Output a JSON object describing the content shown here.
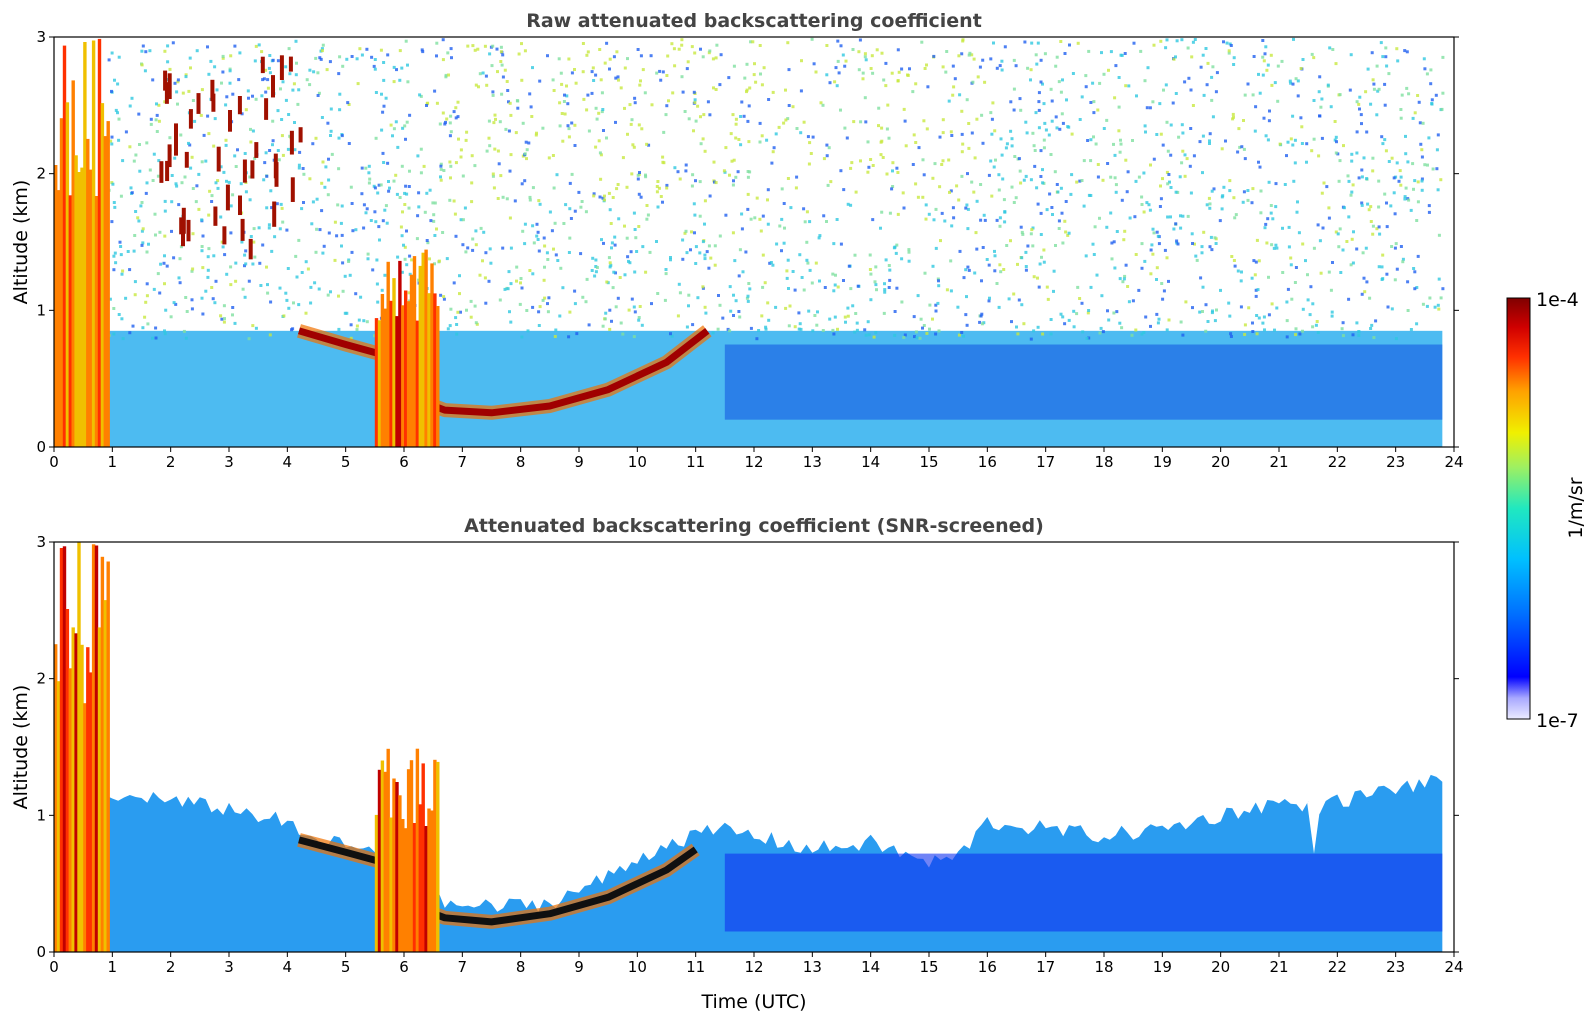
{
  "chart_data": [
    {
      "type": "heatmap",
      "title": "Raw attenuated backscattering coefficient",
      "xlabel": "",
      "ylabel": "Altitude (km)",
      "xlim": [
        0,
        24
      ],
      "ylim": [
        0,
        3
      ],
      "x_ticks": [
        "0",
        "1",
        "2",
        "3",
        "4",
        "5",
        "6",
        "7",
        "8",
        "9",
        "10",
        "11",
        "12",
        "13",
        "14",
        "15",
        "16",
        "17",
        "18",
        "19",
        "20",
        "21",
        "22",
        "23",
        "24"
      ],
      "y_ticks": [
        "0",
        "1",
        "2",
        "3"
      ],
      "data_end_x": 23.8,
      "noise_background": true,
      "features": [
        {
          "kind": "column",
          "x_start": 0.0,
          "x_end": 0.95,
          "y_top": 3.0,
          "level": "high"
        },
        {
          "kind": "layer",
          "points": [
            [
              4.2,
              0.85
            ],
            [
              5.0,
              0.75
            ],
            [
              5.6,
              0.68
            ],
            [
              5.9,
              0.5
            ],
            [
              6.2,
              0.35
            ],
            [
              6.7,
              0.27
            ],
            [
              7.5,
              0.25
            ],
            [
              8.5,
              0.3
            ],
            [
              9.5,
              0.42
            ],
            [
              10.5,
              0.62
            ],
            [
              11.2,
              0.85
            ]
          ],
          "level": "max"
        },
        {
          "kind": "column",
          "x_start": 5.5,
          "x_end": 6.6,
          "y_top": 1.5,
          "level": "high"
        },
        {
          "kind": "blobs",
          "x_range": [
            1.8,
            4.2
          ],
          "y_range": [
            1.5,
            2.9
          ],
          "level": "max"
        }
      ]
    },
    {
      "type": "heatmap",
      "title": "Attenuated backscattering coefficient (SNR-screened)",
      "xlabel": "Time (UTC)",
      "ylabel": "Altitude (km)",
      "xlim": [
        0,
        24
      ],
      "ylim": [
        0,
        3
      ],
      "x_ticks": [
        "0",
        "1",
        "2",
        "3",
        "4",
        "5",
        "6",
        "7",
        "8",
        "9",
        "10",
        "11",
        "12",
        "13",
        "14",
        "15",
        "16",
        "17",
        "18",
        "19",
        "20",
        "21",
        "22",
        "23",
        "24"
      ],
      "y_ticks": [
        "0",
        "1",
        "2",
        "3"
      ],
      "data_end_x": 23.8,
      "noise_background": false,
      "signal_top": [
        [
          1.0,
          1.1
        ],
        [
          1.5,
          1.15
        ],
        [
          2.0,
          1.1
        ],
        [
          3.0,
          1.05
        ],
        [
          4.0,
          0.95
        ],
        [
          4.2,
          0.85
        ],
        [
          5.0,
          0.78
        ],
        [
          5.6,
          0.72
        ],
        [
          6.0,
          0.5
        ],
        [
          6.7,
          0.35
        ],
        [
          7.5,
          0.33
        ],
        [
          8.5,
          0.36
        ],
        [
          9.5,
          0.55
        ],
        [
          10.5,
          0.8
        ],
        [
          11.5,
          0.9
        ],
        [
          12.0,
          0.85
        ],
        [
          13.0,
          0.75
        ],
        [
          14.0,
          0.8
        ],
        [
          15.0,
          0.65
        ],
        [
          15.5,
          0.7
        ],
        [
          16.0,
          0.95
        ],
        [
          17.0,
          0.9
        ],
        [
          18.0,
          0.85
        ],
        [
          19.0,
          0.9
        ],
        [
          20.0,
          1.0
        ],
        [
          21.0,
          1.1
        ],
        [
          21.5,
          1.05
        ],
        [
          22.0,
          1.1
        ],
        [
          23.0,
          1.2
        ],
        [
          23.8,
          1.25
        ]
      ],
      "features": [
        {
          "kind": "column",
          "x_start": 0.0,
          "x_end": 0.95,
          "y_top": 3.0,
          "level": "high"
        },
        {
          "kind": "layer",
          "points": [
            [
              4.2,
              0.82
            ],
            [
              5.0,
              0.73
            ],
            [
              5.6,
              0.66
            ],
            [
              5.9,
              0.48
            ],
            [
              6.2,
              0.33
            ],
            [
              6.7,
              0.25
            ],
            [
              7.5,
              0.22
            ],
            [
              8.5,
              0.28
            ],
            [
              9.5,
              0.4
            ],
            [
              10.5,
              0.6
            ],
            [
              11.0,
              0.75
            ]
          ],
          "level": "black"
        },
        {
          "kind": "column",
          "x_start": 5.5,
          "x_end": 6.6,
          "y_top": 1.5,
          "level": "high"
        },
        {
          "kind": "notch",
          "x": 21.6,
          "y_bottom": 0.72
        }
      ]
    }
  ],
  "colorbar": {
    "label": "1/m/sr",
    "max_label": "1e-4",
    "min_label": "1e-7",
    "scale": "log",
    "colormap": "jet",
    "colors": [
      "#f0f0ff",
      "#c8c8ff",
      "#9090ff",
      "#0000ff",
      "#0060ff",
      "#00b0ff",
      "#00e0e0",
      "#40f0a0",
      "#a0f060",
      "#f0f000",
      "#ffb000",
      "#ff6000",
      "#ff1000",
      "#c00000",
      "#800000"
    ]
  }
}
